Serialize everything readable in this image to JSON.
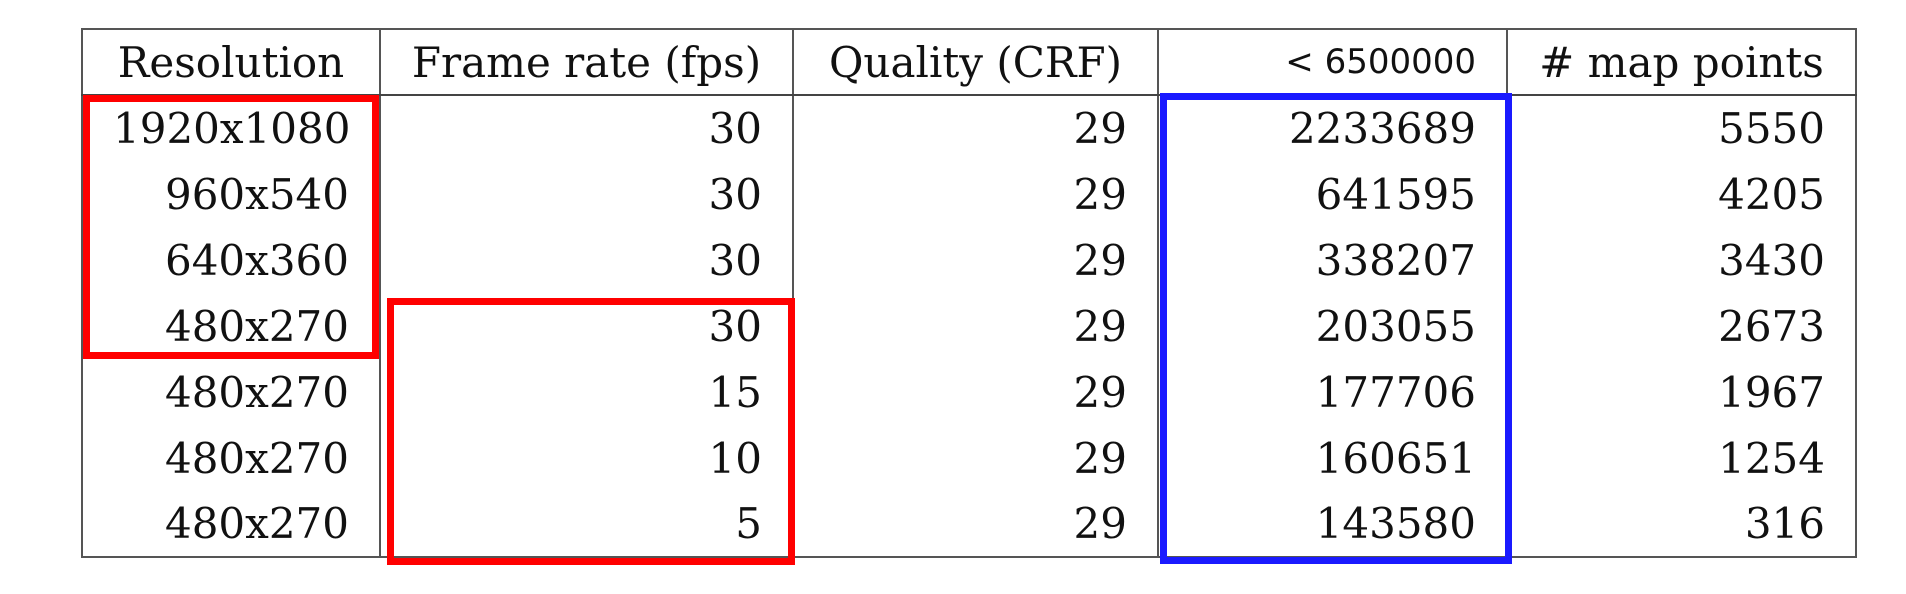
{
  "table": {
    "headers": [
      "Resolution",
      "Frame rate (fps)",
      "Quality (CRF)",
      "< 6500000",
      "# map points"
    ],
    "rows": [
      [
        "1920x1080",
        "30",
        "29",
        "2233689",
        "5550"
      ],
      [
        "960x540",
        "30",
        "29",
        "641595",
        "4205"
      ],
      [
        "640x360",
        "30",
        "29",
        "338207",
        "3430"
      ],
      [
        "480x270",
        "30",
        "29",
        "203055",
        "2673"
      ],
      [
        "480x270",
        "15",
        "29",
        "177706",
        "1967"
      ],
      [
        "480x270",
        "10",
        "29",
        "160651",
        "1254"
      ],
      [
        "480x270",
        "5",
        "29",
        "143580",
        "316"
      ]
    ]
  },
  "highlights": {
    "resolution_group_color": "#ff0000",
    "frame_rate_group_color": "#ff0000",
    "size_column_color": "#1a1aff"
  }
}
